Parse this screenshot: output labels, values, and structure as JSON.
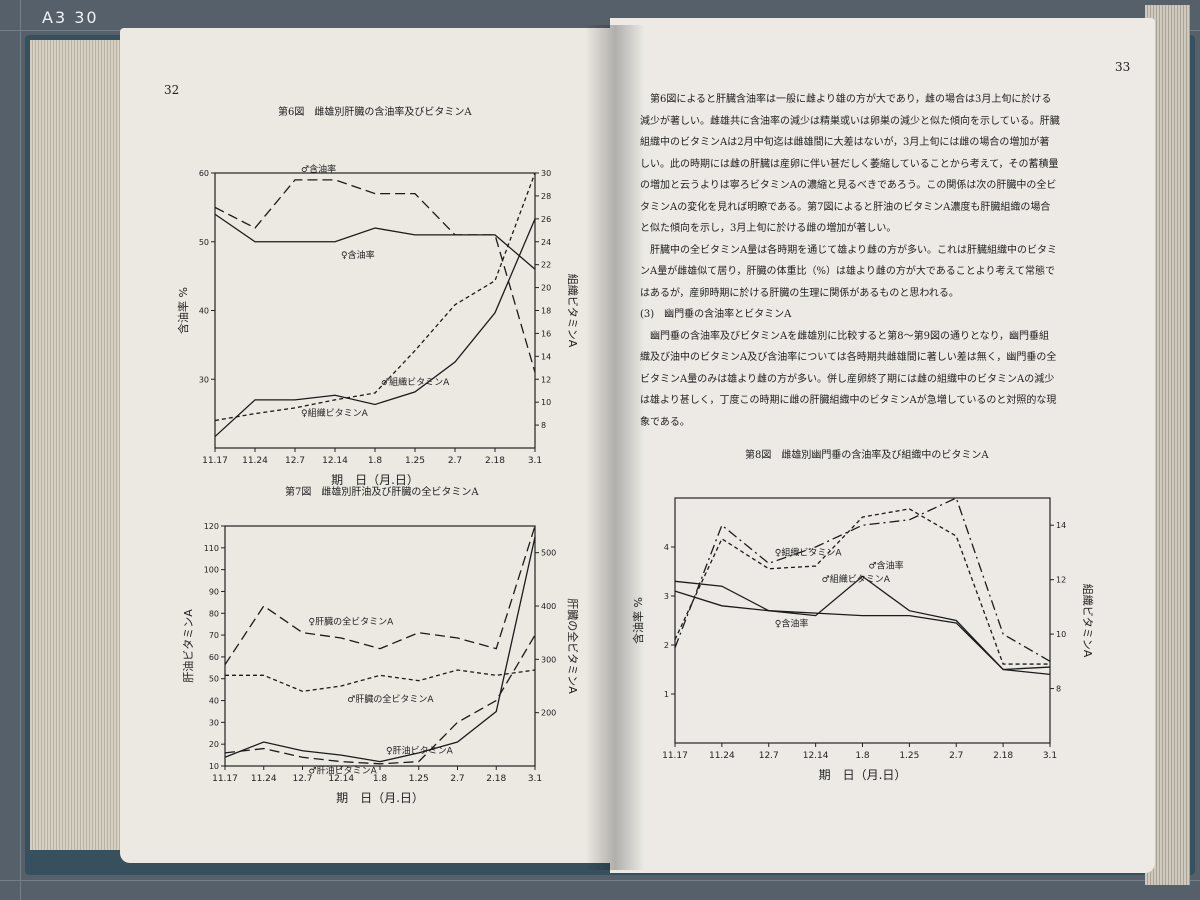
{
  "mat_label": "A3 30",
  "left_page": {
    "page_number": "32"
  },
  "right_page": {
    "page_number": "33",
    "paragraphs": [
      "第6図によると肝臓含油率は一般に雌より雄の方が大であり，雌の場合は3月上旬に於ける",
      "減少が著しい。雌雄共に含油率の減少は精巣或いは卵巣の減少と似た傾向を示している。肝臓",
      "組織中のビタミンAは2月中旬迄は雌雄間に大差はないが，3月上旬には雌の場合の増加が著",
      "しい。此の時期には雌の肝臓は産卵に伴い甚だしく萎縮していることから考えて，その蓄積量",
      "の増加と云うよりは寧ろビタミンAの濃縮と見るべきであろう。この関係は次の肝臓中の全ビ",
      "タミンAの変化を見れば明瞭である。第7図によると肝油のビタミンA濃度も肝臓組織の場合",
      "と似た傾向を示し，3月上旬に於ける雌の増加が著しい。",
      "肝臓中の全ビタミンA量は各時期を通じて雄より雌の方が多い。これは肝臓組織中のビタミ",
      "ンA量が雌雄似て居り，肝臓の体重比（%）は雄より雌の方が大であることより考えて常態で",
      "はあるが，産卵時期に於ける肝臓の生理に関係があるものと思われる。",
      "(3)　幽門垂の含油率とビタミンA",
      "幽門垂の含油率及びビタミンAを雌雄別に比較すると第8～第9図の通りとなり，幽門垂組",
      "織及び油中のビタミンA及び含油率については各時期共雌雄間に著しい差は無く，幽門垂の全",
      "ビタミンA量のみは雄より雌の方が多い。併し産卵終了期には雌の組織中のビタミンAの減少",
      "は雄より甚しく，丁度この時期に雌の肝臓組織中のビタミンAが急増しているのと対照的な現",
      "象である。"
    ]
  },
  "chart_data": [
    {
      "type": "line",
      "title": "第6図　雌雄別肝臓の含油率及びビタミンA",
      "categories": [
        "11.17",
        "11.24",
        "12.7",
        "12.14",
        "1.8",
        "1.25",
        "2.7",
        "2.18",
        "3.1"
      ],
      "xlabel": "期　日（月.日）",
      "ylabel": "含油率 %",
      "ylabel_right": "組織ビタミンA",
      "ylim": [
        20,
        60
      ],
      "ylim_right": [
        6,
        30
      ],
      "yticks": [
        "30",
        "40",
        "50",
        "60"
      ],
      "yticks_right": [
        "8",
        "10",
        "12",
        "14",
        "16",
        "18",
        "20",
        "22",
        "24",
        "26",
        "28",
        "30"
      ],
      "series": [
        {
          "name": "♂含油率",
          "axis": "left",
          "style": "longdash",
          "values": [
            55,
            52,
            59,
            59,
            57,
            57,
            51,
            51,
            31
          ]
        },
        {
          "name": "♀含油率",
          "axis": "left",
          "style": "solid",
          "values": [
            54,
            50,
            50,
            50,
            52,
            51,
            51,
            51,
            46
          ]
        },
        {
          "name": "♂組織ビタミンA",
          "axis": "right",
          "style": "dashed",
          "values": [
            8.4,
            9.0,
            9.5,
            10.2,
            10.8,
            14.5,
            18.5,
            20.6,
            30
          ]
        },
        {
          "name": "♀組織ビタミンA",
          "axis": "right",
          "style": "solid",
          "values": [
            7.0,
            10.2,
            10.2,
            10.6,
            9.8,
            10.9,
            13.5,
            17.8,
            26.0
          ]
        }
      ]
    },
    {
      "type": "line",
      "title": "第7図　雌雄別肝油及び肝臓の全ビタミンA",
      "categories": [
        "11.17",
        "11.24",
        "12.7",
        "12.14",
        "1.8",
        "1.25",
        "2.7",
        "2.18",
        "3.1"
      ],
      "xlabel": "期　日（月.日）",
      "ylabel": "肝油ビタミンA",
      "ylabel_right": "肝臓の全ビタミンA",
      "ylim": [
        10,
        120
      ],
      "ylim_right": [
        100,
        550
      ],
      "yticks": [
        "10",
        "20",
        "30",
        "40",
        "50",
        "60",
        "70",
        "80",
        "90",
        "100",
        "110",
        "120"
      ],
      "yticks_right": [
        "200",
        "300",
        "400",
        "500"
      ],
      "series": [
        {
          "name": "♀肝臓の全ビタミンA",
          "axis": "right",
          "style": "longdash",
          "values": [
            290,
            400,
            350,
            340,
            320,
            350,
            340,
            320,
            550
          ]
        },
        {
          "name": "♂肝臓の全ビタミンA",
          "axis": "right",
          "style": "dashed",
          "values": [
            270,
            270,
            240,
            250,
            270,
            260,
            280,
            270,
            280
          ]
        },
        {
          "name": "♀肝油ビタミンA",
          "axis": "left",
          "style": "solid",
          "values": [
            14,
            21,
            17,
            15,
            12,
            16,
            21,
            35,
            115
          ]
        },
        {
          "name": "♂肝油ビタミンA",
          "axis": "left",
          "style": "longdash",
          "values": [
            16,
            18,
            14,
            12,
            11,
            12,
            30,
            40,
            70
          ]
        }
      ]
    },
    {
      "type": "line",
      "title": "第8図　雌雄別幽門垂の含油率及び組織中のビタミンA",
      "categories": [
        "11.17",
        "11.24",
        "12.7",
        "12.14",
        "1.8",
        "1.25",
        "2.7",
        "2.18",
        "3.1"
      ],
      "xlabel": "期　日（月.日）",
      "ylabel": "含油率 %",
      "ylabel_right": "組織ビタミンA",
      "ylim": [
        0,
        5
      ],
      "ylim_right": [
        6,
        15
      ],
      "yticks": [
        "1",
        "2",
        "3",
        "4"
      ],
      "yticks_right": [
        "8",
        "10",
        "12",
        "14"
      ],
      "series": [
        {
          "name": "♀組織ビタミンA",
          "axis": "right",
          "style": "dashdot",
          "values": [
            9.5,
            14.0,
            12.6,
            13.2,
            14.0,
            14.2,
            15.0,
            10.0,
            9.0
          ]
        },
        {
          "name": "♂組織ビタミンA",
          "axis": "right",
          "style": "dashed",
          "values": [
            9.8,
            13.5,
            12.4,
            12.5,
            14.3,
            14.6,
            13.6,
            8.9,
            8.9
          ]
        },
        {
          "name": "♂含油率",
          "axis": "left",
          "style": "solid",
          "values": [
            3.3,
            3.2,
            2.7,
            2.6,
            3.4,
            2.7,
            2.5,
            1.5,
            1.4
          ]
        },
        {
          "name": "♀含油率",
          "axis": "left",
          "style": "solid",
          "values": [
            3.1,
            2.8,
            2.7,
            2.65,
            2.6,
            2.6,
            2.45,
            1.5,
            1.55
          ]
        }
      ]
    }
  ]
}
